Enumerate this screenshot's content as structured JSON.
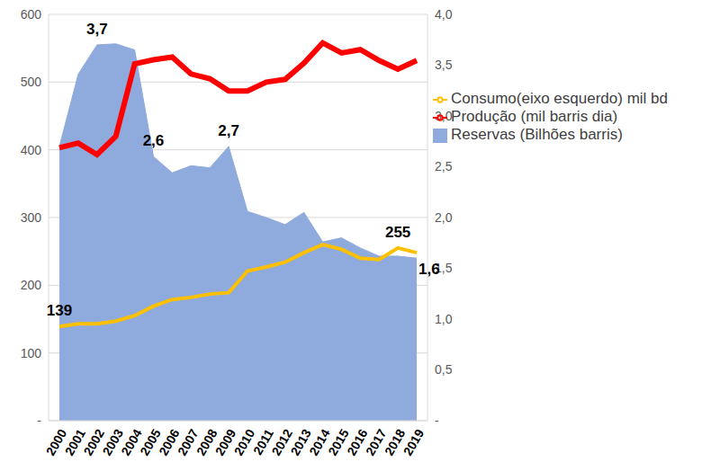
{
  "chart_data": {
    "type": "line",
    "categories": [
      "2000",
      "2001",
      "2002",
      "2003",
      "2004",
      "2005",
      "2006",
      "2007",
      "2008",
      "2009",
      "2010",
      "2011",
      "2012",
      "2013",
      "2014",
      "2015",
      "2016",
      "2017",
      "2018",
      "2019"
    ],
    "series": [
      {
        "name": "Reservas (Bilhões barris)",
        "type": "area",
        "color": "#8faadc",
        "axis": "y2",
        "values": [
          2.7,
          3.41,
          3.7,
          3.71,
          3.65,
          2.6,
          2.44,
          2.51,
          2.49,
          2.7,
          2.06,
          2.0,
          1.93,
          2.05,
          1.76,
          1.8,
          1.7,
          1.62,
          1.62,
          1.6
        ]
      },
      {
        "name": "Produção (mil barris dia)",
        "type": "line",
        "color": "#ff0000",
        "values": [
          403,
          410,
          393,
          420,
          527,
          533,
          537,
          512,
          505,
          487,
          487,
          500,
          504,
          528,
          558,
          543,
          548,
          532,
          519,
          532
        ]
      },
      {
        "name": "Consumo(eixo esquerdo) mil bd",
        "type": "line",
        "color": "#ffc000",
        "values": [
          139,
          143,
          143,
          147,
          155,
          169,
          179,
          182,
          187,
          189,
          221,
          227,
          234,
          248,
          260,
          253,
          240,
          238,
          255,
          248
        ]
      }
    ],
    "ylim": [
      0,
      600
    ],
    "yticks": [
      {
        "value": 0,
        "label": "-"
      },
      100,
      200,
      300,
      400,
      500,
      600
    ],
    "y2lim": [
      0,
      4
    ],
    "y2ticks": [
      {
        "value": 0,
        "label": "-"
      },
      {
        "value": 0.5,
        "label": "0,5"
      },
      {
        "value": 1,
        "label": "1,0"
      },
      {
        "value": 1.5,
        "label": "1,5"
      },
      {
        "value": 2,
        "label": "2,0"
      },
      {
        "value": 2.5,
        "label": "2,5"
      },
      {
        "value": 3,
        "label": "3,0"
      },
      {
        "value": 3.5,
        "label": "3,5"
      },
      {
        "value": 4,
        "label": "4,0"
      }
    ],
    "grid": true,
    "legend": "upper right",
    "annotations": [
      {
        "text": "3,7",
        "category": "2002",
        "series": "Reservas (Bilhões barris)"
      },
      {
        "text": "2,6",
        "category": "2005",
        "series": "Reservas (Bilhões barris)"
      },
      {
        "text": "2,7",
        "category": "2009",
        "series": "Reservas (Bilhões barris)"
      },
      {
        "text": "1,6",
        "category": "2019",
        "series": "Reservas (Bilhões barris)"
      },
      {
        "text": "139",
        "category": "2000",
        "series": "Consumo(eixo esquerdo) mil bd"
      },
      {
        "text": "255",
        "category": "2018",
        "series": "Consumo(eixo esquerdo) mil bd"
      }
    ]
  }
}
